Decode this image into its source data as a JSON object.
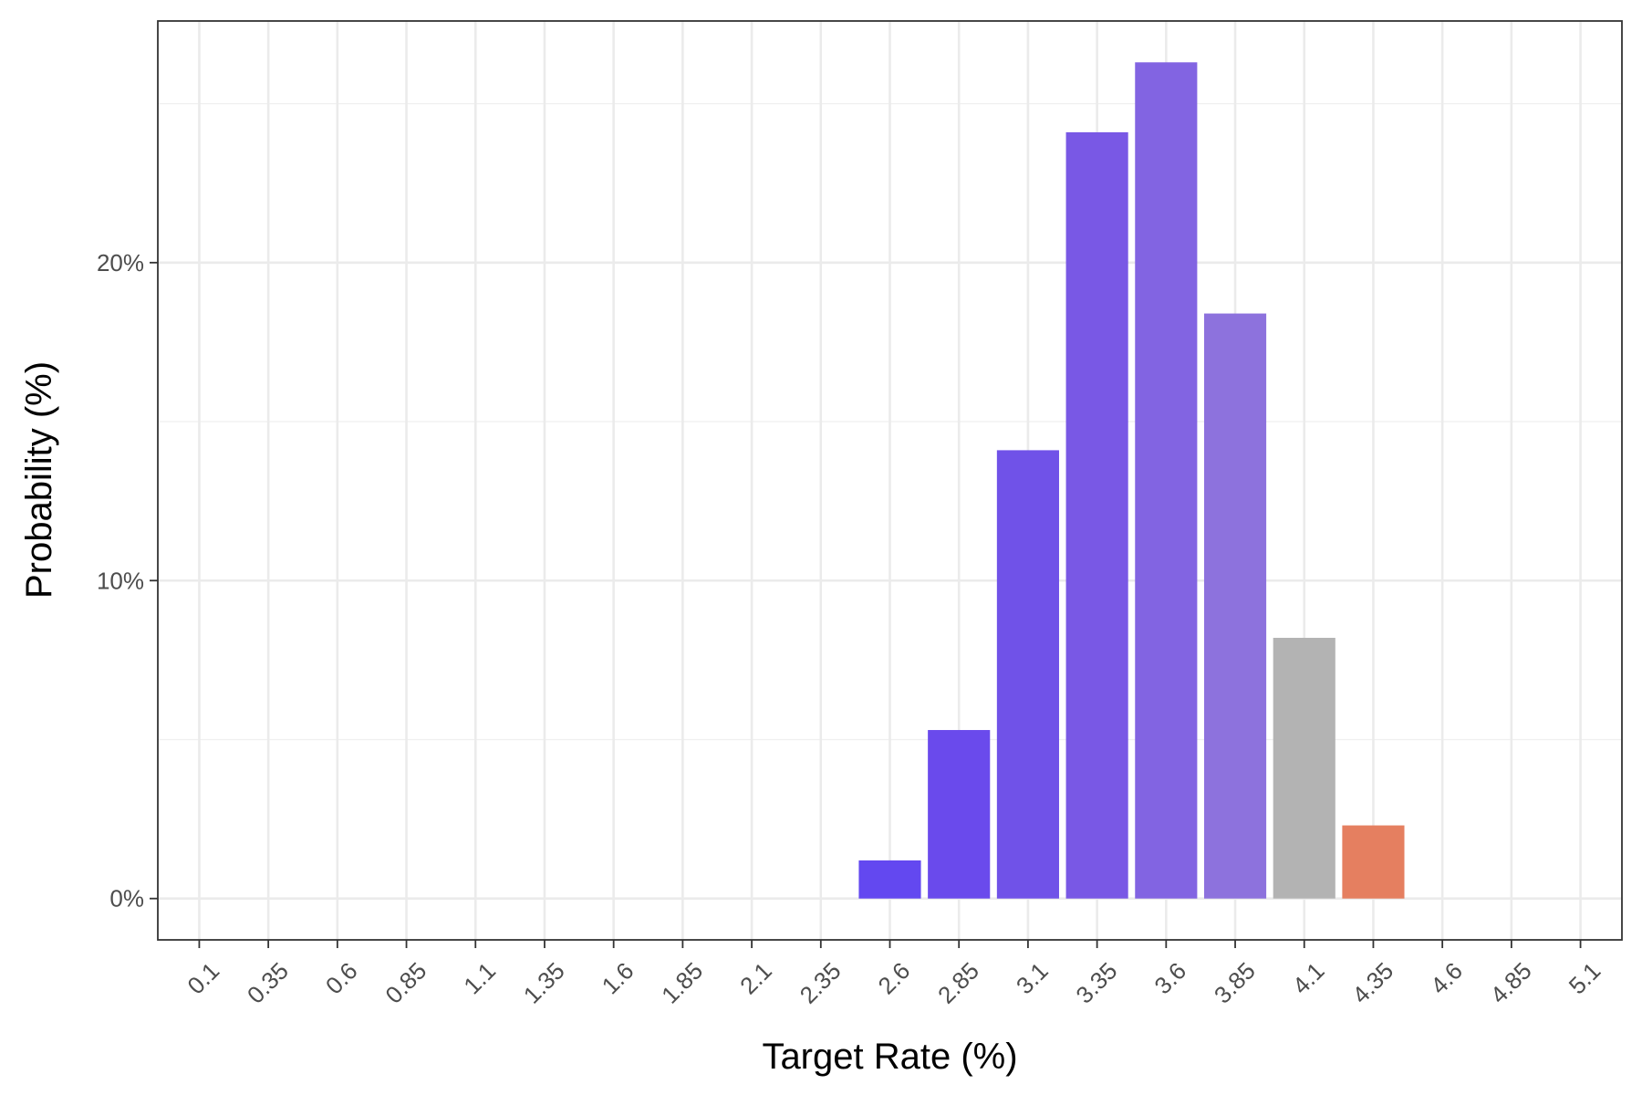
{
  "chart_data": {
    "type": "bar",
    "title": "",
    "xlabel": "Target Rate (%)",
    "ylabel": "Probability (%)",
    "categories": [
      "0.1",
      "0.35",
      "0.6",
      "0.85",
      "1.1",
      "1.35",
      "1.6",
      "1.85",
      "2.1",
      "2.35",
      "2.6",
      "2.85",
      "3.1",
      "3.35",
      "3.6",
      "3.85",
      "4.1",
      "4.35",
      "4.6",
      "4.85",
      "5.1"
    ],
    "values": [
      0,
      0,
      0,
      0,
      0,
      0,
      0,
      0,
      0,
      0,
      1.2,
      5.3,
      14.1,
      24.1,
      26.3,
      18.4,
      8.2,
      2.3,
      0,
      0,
      0
    ],
    "bar_colors": [
      "#6348f0",
      "#6348f0",
      "#6348f0",
      "#6348f0",
      "#6348f0",
      "#6348f0",
      "#6348f0",
      "#6348f0",
      "#6348f0",
      "#6348f0",
      "#6348f0",
      "#6a4aec",
      "#7052e8",
      "#7958e5",
      "#8264e2",
      "#8d72dd",
      "#b3b3b3",
      "#e57f60",
      "#b3b3b3",
      "#b3b3b3",
      "#b3b3b3"
    ],
    "ylim": [
      -1.3,
      27.6
    ],
    "y_ticks": [
      0,
      10,
      20
    ],
    "y_tick_labels": [
      "0%",
      "10%",
      "20%"
    ],
    "grid": true,
    "legend": "none"
  }
}
